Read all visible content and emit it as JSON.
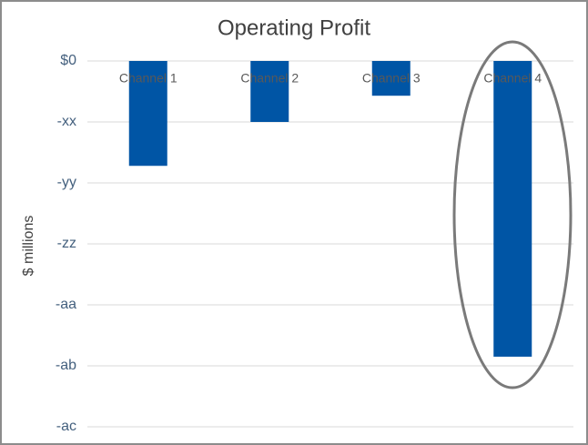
{
  "chart_data": {
    "type": "bar",
    "title": "Operating Profit",
    "y_label": "$ millions",
    "categories": [
      "Channel 1",
      "Channel 2",
      "Channel 3",
      "Channel 4"
    ],
    "values": [
      -1.72,
      -1.0,
      -0.57,
      -4.85
    ],
    "color": "#0055a5",
    "ylim": [
      -6,
      0
    ],
    "yticks": [
      {
        "value": 0,
        "label": "$0"
      },
      {
        "value": -1,
        "label": "-xx"
      },
      {
        "value": -2,
        "label": "-yy"
      },
      {
        "value": -3,
        "label": "-zz"
      },
      {
        "value": -4,
        "label": "-aa"
      },
      {
        "value": -5,
        "label": "-ab"
      },
      {
        "value": -6,
        "label": "-ac"
      }
    ],
    "grid": true
  }
}
